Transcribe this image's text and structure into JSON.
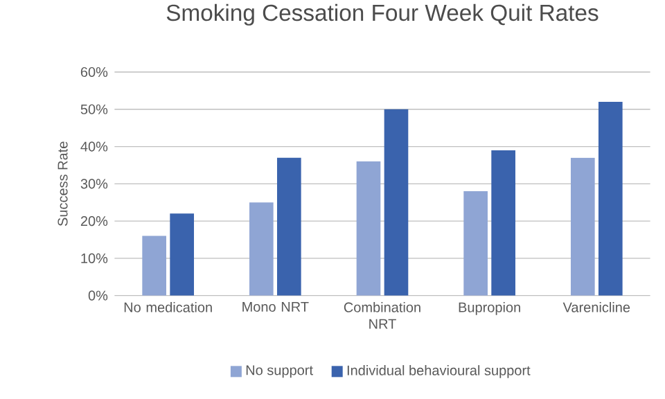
{
  "chart_data": {
    "type": "bar",
    "title": "Smoking Cessation Four Week Quit Rates",
    "ylabel": "Success Rate",
    "categories": [
      "No medication",
      "Mono NRT",
      "Combination NRT",
      "Bupropion",
      "Varenicline"
    ],
    "series": [
      {
        "name": "No support",
        "color": "#8fa5d4",
        "values": [
          16,
          25,
          36,
          28,
          37
        ]
      },
      {
        "name": "Individual behavioural support",
        "color": "#3a63ad",
        "values": [
          22,
          37,
          50,
          39,
          52
        ]
      }
    ],
    "ylim": [
      0,
      60
    ],
    "yticks": [
      {
        "value": 0,
        "label": "0%"
      },
      {
        "value": 10,
        "label": "10%"
      },
      {
        "value": 20,
        "label": "20%"
      },
      {
        "value": 30,
        "label": "30%"
      },
      {
        "value": 40,
        "label": "40%"
      },
      {
        "value": 50,
        "label": "50%"
      },
      {
        "value": 60,
        "label": "60%"
      }
    ],
    "grid": "y",
    "legend": "bottom"
  }
}
